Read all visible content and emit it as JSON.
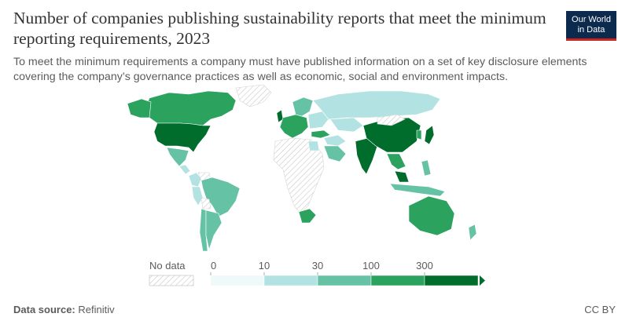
{
  "title": "Number of companies publishing sustainability reports that meet the minimum reporting requirements, 2023",
  "subtitle": "To meet the minimum requirements a company must have published information on a set of key disclosure elements covering the company’s governance practices as well as economic, social and environment impacts.",
  "logo": {
    "line1": "Our World",
    "line2": "in Data"
  },
  "legend": {
    "no_data_label": "No data",
    "ticks": [
      "0",
      "10",
      "30",
      "100",
      "300"
    ],
    "colors": [
      "#eef9f9",
      "#b2e2e2",
      "#66c2a4",
      "#2ca25f",
      "#006d2c"
    ]
  },
  "colors": {
    "no_data": "#e8e8e8",
    "title": "#333333",
    "text": "#5b5b5b",
    "brand": "#0c2a4d",
    "brand_accent": "#ce261e"
  },
  "regions": [
    {
      "name": "canada",
      "level": 3
    },
    {
      "name": "alaska",
      "level": 3
    },
    {
      "name": "greenland",
      "level": -1
    },
    {
      "name": "usa",
      "level": 4
    },
    {
      "name": "mexico",
      "level": 2
    },
    {
      "name": "central-america",
      "level": 1
    },
    {
      "name": "colombia",
      "level": 1
    },
    {
      "name": "venezuela",
      "level": -1
    },
    {
      "name": "peru",
      "level": 1
    },
    {
      "name": "brazil",
      "level": 2
    },
    {
      "name": "bolivia",
      "level": -1
    },
    {
      "name": "chile",
      "level": 2
    },
    {
      "name": "argentina",
      "level": 2
    },
    {
      "name": "uk",
      "level": 4
    },
    {
      "name": "western-europe",
      "level": 3
    },
    {
      "name": "scandinavia",
      "level": 2
    },
    {
      "name": "eastern-europe",
      "level": 1
    },
    {
      "name": "russia",
      "level": 1
    },
    {
      "name": "kazakhstan",
      "level": 1
    },
    {
      "name": "turkey",
      "level": 3
    },
    {
      "name": "middle-east",
      "level": 1
    },
    {
      "name": "saudi-arabia",
      "level": 2
    },
    {
      "name": "africa",
      "level": -1
    },
    {
      "name": "egypt",
      "level": 1
    },
    {
      "name": "south-africa",
      "level": 3
    },
    {
      "name": "india",
      "level": 4
    },
    {
      "name": "china",
      "level": 4
    },
    {
      "name": "mongolia",
      "level": -1
    },
    {
      "name": "japan",
      "level": 4
    },
    {
      "name": "korea",
      "level": 3
    },
    {
      "name": "southeast-asia",
      "level": 3
    },
    {
      "name": "malaysia",
      "level": 4
    },
    {
      "name": "indonesia",
      "level": 2
    },
    {
      "name": "philippines",
      "level": 2
    },
    {
      "name": "australia",
      "level": 3
    },
    {
      "name": "new-zealand",
      "level": 2
    }
  ],
  "footer": {
    "source_label": "Data source:",
    "source_value": "Refinitiv",
    "license": "CC BY"
  }
}
